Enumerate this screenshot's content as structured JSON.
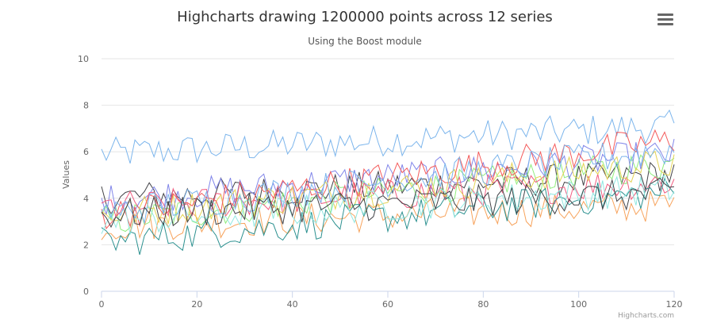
{
  "chart_data": {
    "type": "line",
    "title": "Highcharts drawing 1200000 points across 12 series",
    "subtitle": "Using the Boost module",
    "ylabel": "Values",
    "xlabel": "",
    "xlim": [
      0,
      120
    ],
    "ylim": [
      0,
      10
    ],
    "x_ticks": [
      "0",
      "20",
      "40",
      "60",
      "80",
      "100",
      "120"
    ],
    "y_ticks": [
      "0",
      "2",
      "4",
      "6",
      "8",
      "10"
    ],
    "grid": "horizontal",
    "legend": "none",
    "colors": [
      "#7cb5ec",
      "#434348",
      "#90ed7d",
      "#f7a35c",
      "#8085e9",
      "#f15c80",
      "#e4d354",
      "#2b908f",
      "#f45b5b",
      "#91e8e1",
      "#7cb5ec",
      "#434348"
    ],
    "series_points": 100000,
    "series": [
      {
        "start": 5.9,
        "end": 7.1
      },
      {
        "start": 4.0,
        "end": 5.0
      },
      {
        "start": 3.0,
        "end": 5.5
      },
      {
        "start": 2.8,
        "end": 3.7
      },
      {
        "start": 3.9,
        "end": 5.9
      },
      {
        "start": 3.6,
        "end": 4.7
      },
      {
        "start": 3.3,
        "end": 5.5
      },
      {
        "start": 2.1,
        "end": 4.3
      },
      {
        "start": 3.3,
        "end": 6.5
      },
      {
        "start": 3.0,
        "end": 4.4
      },
      {
        "start": 3.4,
        "end": 6.1
      },
      {
        "start": 3.3,
        "end": 4.2
      }
    ]
  },
  "credits": "Highcharts.com",
  "menu_icon": "hamburger-icon"
}
